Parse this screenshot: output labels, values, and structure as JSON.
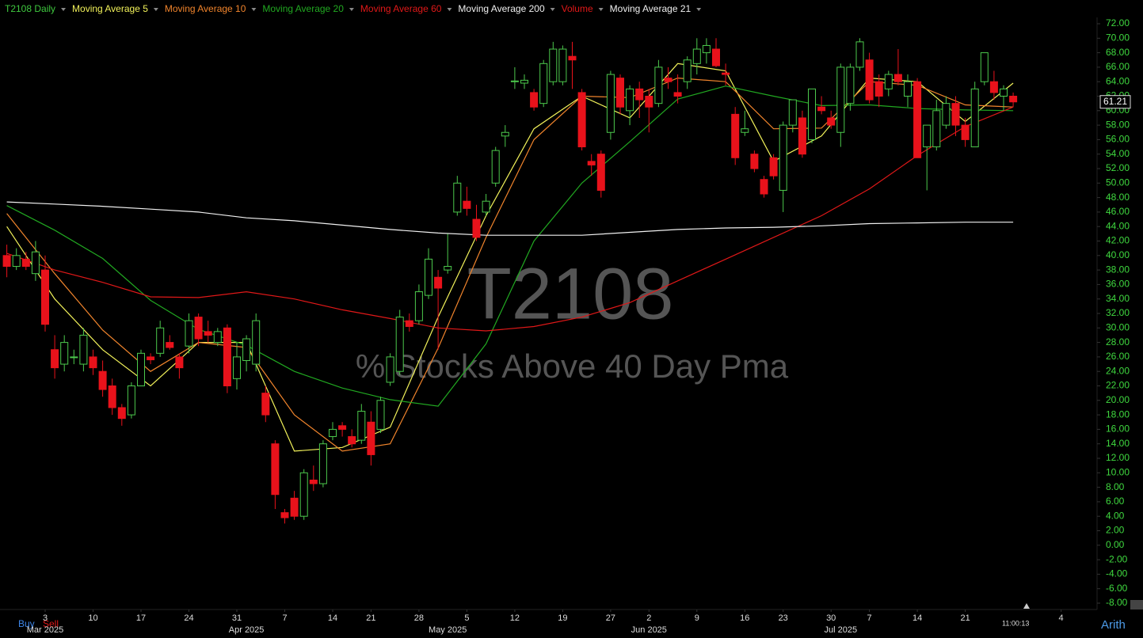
{
  "chart_data": {
    "type": "candlestick",
    "title": "T2108",
    "subtitle": "% Stocks Above 40 Day Pma",
    "up_color": "#4cc94c",
    "down_color": "#e8121b",
    "candles": {
      "name": "T2108 Daily",
      "color": "#3fc93f",
      "x": [
        "2025-02-25",
        "2025-02-26",
        "2025-02-27",
        "2025-02-28",
        "2025-03-03",
        "2025-03-04",
        "2025-03-05",
        "2025-03-06",
        "2025-03-07",
        "2025-03-10",
        "2025-03-11",
        "2025-03-12",
        "2025-03-13",
        "2025-03-14",
        "2025-03-17",
        "2025-03-18",
        "2025-03-19",
        "2025-03-20",
        "2025-03-21",
        "2025-03-24",
        "2025-03-25",
        "2025-03-26",
        "2025-03-27",
        "2025-03-28",
        "2025-03-31",
        "2025-04-01",
        "2025-04-02",
        "2025-04-03",
        "2025-04-04",
        "2025-04-07",
        "2025-04-08",
        "2025-04-09",
        "2025-04-10",
        "2025-04-11",
        "2025-04-14",
        "2025-04-15",
        "2025-04-16",
        "2025-04-17",
        "2025-04-21",
        "2025-04-22",
        "2025-04-23",
        "2025-04-24",
        "2025-04-25",
        "2025-04-28",
        "2025-04-29",
        "2025-04-30",
        "2025-05-01",
        "2025-05-02",
        "2025-05-05",
        "2025-05-06",
        "2025-05-07",
        "2025-05-08",
        "2025-05-09",
        "2025-05-12",
        "2025-05-13",
        "2025-05-14",
        "2025-05-15",
        "2025-05-16",
        "2025-05-19",
        "2025-05-20",
        "2025-05-21",
        "2025-05-22",
        "2025-05-23",
        "2025-05-27",
        "2025-05-28",
        "2025-05-29",
        "2025-05-30",
        "2025-06-02",
        "2025-06-03",
        "2025-06-04",
        "2025-06-05",
        "2025-06-06",
        "2025-06-09",
        "2025-06-10",
        "2025-06-11",
        "2025-06-12",
        "2025-06-13",
        "2025-06-16",
        "2025-06-17",
        "2025-06-18",
        "2025-06-20",
        "2025-06-23",
        "2025-06-24",
        "2025-06-25",
        "2025-06-26",
        "2025-06-27",
        "2025-06-30",
        "2025-07-01",
        "2025-07-02",
        "2025-07-03",
        "2025-07-07",
        "2025-07-08",
        "2025-07-09",
        "2025-07-10",
        "2025-07-11",
        "2025-07-14",
        "2025-07-15",
        "2025-07-16",
        "2025-07-17",
        "2025-07-18",
        "2025-07-21",
        "2025-07-22",
        "2025-07-23",
        "2025-07-24",
        "2025-07-25",
        "2025-07-28"
      ],
      "open": [
        40,
        38.5,
        39.5,
        37.5,
        38,
        27,
        25,
        26,
        25,
        26,
        24,
        22,
        19,
        18,
        22,
        26,
        26.5,
        28,
        26,
        27.5,
        31.5,
        29.5,
        28,
        30,
        23,
        25.5,
        25,
        21,
        14,
        4.5,
        6.5,
        4,
        9,
        8.5,
        15,
        16.5,
        15,
        14.5,
        17,
        16,
        22.5,
        24,
        31,
        31,
        34.5,
        37,
        38,
        46,
        47.5,
        45,
        46,
        50,
        56.5,
        64,
        63.8,
        62.5,
        61,
        64,
        64,
        67.5,
        62.5,
        53,
        54,
        57,
        64.5,
        60,
        63,
        62,
        61,
        64.5,
        62.5,
        64,
        66.5,
        68,
        68.5,
        65.2,
        59.5,
        57,
        54,
        50.5,
        53.5,
        49,
        58,
        59,
        56,
        60.5,
        59,
        57,
        61,
        66,
        67,
        64,
        63,
        65,
        62,
        64,
        55,
        55,
        58,
        61,
        58,
        55,
        64,
        64,
        62,
        62
      ],
      "high": [
        41.5,
        41,
        40.5,
        42,
        40,
        29,
        29,
        27,
        30,
        27,
        25.5,
        23,
        19.5,
        22.5,
        27,
        26.5,
        31,
        29,
        26.5,
        32,
        32,
        31,
        30,
        30.5,
        28,
        29,
        32,
        22,
        14.5,
        5,
        7.5,
        10.5,
        11,
        14.5,
        17,
        17,
        16,
        19.5,
        18.5,
        20.5,
        26.5,
        32.5,
        32,
        36,
        41,
        38,
        43,
        51,
        49.5,
        47,
        48.5,
        55,
        58,
        66,
        65,
        63,
        67,
        69.5,
        69,
        69.5,
        63,
        54,
        54.5,
        65.5,
        65,
        63.5,
        64,
        63,
        67,
        66,
        65,
        67.5,
        70,
        70,
        70,
        66.5,
        60.5,
        60,
        54.5,
        51,
        54,
        58.5,
        61.5,
        60,
        63,
        62,
        60,
        66.5,
        66.5,
        70,
        68,
        65,
        65.5,
        68.5,
        65,
        64.5,
        58,
        61.5,
        62,
        62,
        59,
        64,
        68,
        65.5,
        63.5,
        62.5
      ],
      "low": [
        37,
        38,
        38,
        36.5,
        29.5,
        23,
        24,
        25,
        24,
        23.5,
        20.5,
        18,
        16.5,
        17.5,
        22,
        25,
        26,
        27,
        23,
        26.5,
        27.5,
        28,
        27.5,
        21,
        21.5,
        24,
        24,
        17,
        5,
        3,
        3.5,
        3.5,
        7.5,
        8,
        14.5,
        15,
        13.5,
        14,
        11,
        15.5,
        22,
        23.5,
        29.5,
        30.5,
        34,
        27,
        37.5,
        45.5,
        45.5,
        42,
        45.5,
        49.5,
        55,
        63,
        63,
        60,
        60.5,
        63.5,
        63.5,
        63,
        54.5,
        51,
        48,
        56,
        59.5,
        58,
        59,
        57,
        60.5,
        63,
        61,
        63,
        65,
        66.5,
        66,
        63.5,
        52.5,
        56.5,
        51.5,
        48,
        50.5,
        46,
        57,
        53.5,
        55.5,
        59.5,
        57.5,
        55,
        60,
        65.5,
        61,
        60.5,
        62,
        63.5,
        60.5,
        53.5,
        49,
        54.5,
        57.5,
        56.5,
        55,
        55,
        63.5,
        61.5,
        60,
        60.5
      ],
      "close": [
        38.5,
        40,
        38.5,
        40.5,
        30.5,
        24.5,
        28,
        26,
        29,
        24.5,
        21.5,
        19,
        17.5,
        22,
        26.5,
        25.6,
        30,
        27.3,
        24.5,
        31,
        28.5,
        29,
        29.5,
        22,
        26,
        28.5,
        31,
        18,
        7,
        3.8,
        4,
        10,
        8.5,
        14,
        16,
        16,
        14,
        18.5,
        12.5,
        20,
        26,
        31.5,
        30.2,
        35,
        39.5,
        35.5,
        38.5,
        50,
        46.5,
        42.5,
        47.5,
        54.5,
        57,
        64.1,
        64.2,
        60.5,
        66.5,
        68.5,
        68.5,
        67,
        55,
        52.5,
        49,
        65,
        60.5,
        63,
        61.5,
        60.5,
        66,
        64,
        62,
        67,
        68.5,
        69,
        66.2,
        65,
        53.5,
        57.5,
        52,
        48.5,
        51,
        58,
        61.5,
        54,
        63,
        60,
        58,
        66,
        66,
        69.5,
        61.5,
        62,
        65,
        64,
        64,
        53.5,
        58,
        60,
        61,
        58,
        56,
        63,
        68,
        62.5,
        63,
        61.21
      ]
    },
    "series": [
      {
        "name": "Moving Average 5",
        "color": "#f2f25a",
        "x": [
          "2025-02-25",
          "2025-03-04",
          "2025-03-11",
          "2025-03-18",
          "2025-03-25",
          "2025-04-01",
          "2025-04-08",
          "2025-04-15",
          "2025-04-23",
          "2025-04-30",
          "2025-05-07",
          "2025-05-14",
          "2025-05-21",
          "2025-05-29",
          "2025-06-05",
          "2025-06-12",
          "2025-06-20",
          "2025-06-27",
          "2025-07-07",
          "2025-07-14",
          "2025-07-21",
          "2025-07-28"
        ],
        "values": [
          44,
          34,
          27,
          22,
          28,
          28,
          13,
          13.5,
          16.3,
          31.5,
          45.5,
          57.5,
          62,
          59,
          66.5,
          65.5,
          53,
          56.5,
          64.5,
          64,
          58.5,
          63.8
        ]
      },
      {
        "name": "Moving Average 10",
        "color": "#f0842c",
        "x": [
          "2025-02-25",
          "2025-03-04",
          "2025-03-11",
          "2025-03-18",
          "2025-03-25",
          "2025-04-01",
          "2025-04-08",
          "2025-04-15",
          "2025-04-23",
          "2025-04-30",
          "2025-05-07",
          "2025-05-14",
          "2025-05-21",
          "2025-05-29",
          "2025-06-05",
          "2025-06-12",
          "2025-06-20",
          "2025-06-27",
          "2025-07-07",
          "2025-07-14",
          "2025-07-21",
          "2025-07-28"
        ],
        "values": [
          45.8,
          37.5,
          29.7,
          24,
          28,
          27.3,
          18,
          13,
          14,
          27.2,
          42.5,
          56,
          62,
          61.8,
          64.5,
          64,
          57.5,
          57.6,
          64,
          63.5,
          60.8,
          60.5
        ]
      },
      {
        "name": "Moving Average 20",
        "color": "#21a821",
        "x": [
          "2025-02-25",
          "2025-03-04",
          "2025-03-11",
          "2025-03-18",
          "2025-03-25",
          "2025-04-01",
          "2025-04-08",
          "2025-04-15",
          "2025-04-23",
          "2025-04-30",
          "2025-05-07",
          "2025-05-14",
          "2025-05-21",
          "2025-05-29",
          "2025-06-05",
          "2025-06-12",
          "2025-06-20",
          "2025-06-27",
          "2025-07-07",
          "2025-07-14",
          "2025-07-21",
          "2025-07-28"
        ],
        "values": [
          46.9,
          43.5,
          39.6,
          33.8,
          29.8,
          27.6,
          24,
          21.7,
          20.1,
          19.2,
          27.8,
          42,
          50,
          55.7,
          61.6,
          63.4,
          62,
          60.7,
          60.8,
          60.3,
          60.1,
          60
        ]
      },
      {
        "name": "Moving Average 60",
        "color": "#e01818",
        "x": [
          "2025-02-25",
          "2025-03-04",
          "2025-03-11",
          "2025-03-18",
          "2025-03-25",
          "2025-04-01",
          "2025-04-08",
          "2025-04-15",
          "2025-04-23",
          "2025-04-30",
          "2025-05-07",
          "2025-05-14",
          "2025-05-21",
          "2025-05-29",
          "2025-06-05",
          "2025-06-12",
          "2025-06-20",
          "2025-06-27",
          "2025-07-07",
          "2025-07-14",
          "2025-07-21",
          "2025-07-28"
        ],
        "values": [
          40.3,
          38,
          36.3,
          34.3,
          34.2,
          35,
          34,
          32.5,
          31.3,
          30,
          29.6,
          30.2,
          31.5,
          33.5,
          36.5,
          39.5,
          42.5,
          45.5,
          49.2,
          53.8,
          57.8,
          60.5
        ]
      },
      {
        "name": "Moving Average 200",
        "color": "#f0f0f0",
        "x": [
          "2025-02-25",
          "2025-03-04",
          "2025-03-11",
          "2025-03-18",
          "2025-03-25",
          "2025-04-01",
          "2025-04-08",
          "2025-04-15",
          "2025-04-23",
          "2025-04-30",
          "2025-05-07",
          "2025-05-14",
          "2025-05-21",
          "2025-05-29",
          "2025-06-05",
          "2025-06-12",
          "2025-06-20",
          "2025-06-27",
          "2025-07-07",
          "2025-07-14",
          "2025-07-21",
          "2025-07-28"
        ],
        "values": [
          47.4,
          47.1,
          46.8,
          46.4,
          46,
          45.2,
          44.8,
          44.2,
          43.6,
          43.1,
          42.8,
          42.8,
          42.8,
          43.2,
          43.6,
          43.8,
          43.9,
          44.1,
          44.4,
          44.5,
          44.6,
          44.6
        ]
      }
    ],
    "extra_legend": [
      {
        "name": "Volume",
        "color": "#e01818"
      },
      {
        "name": "Moving Average 21",
        "color": "#f0f0f0"
      }
    ],
    "ylim": [
      -8,
      72
    ],
    "yticks": [
      {
        "value": 72,
        "label": "72.00"
      },
      {
        "value": 70,
        "label": "70.00"
      },
      {
        "value": 68,
        "label": "68.00"
      },
      {
        "value": 66,
        "label": "66.00"
      },
      {
        "value": 64,
        "label": "64.00"
      },
      {
        "value": 62,
        "label": "62.00"
      },
      {
        "value": 60,
        "label": "60.00"
      },
      {
        "value": 58,
        "label": "58.00"
      },
      {
        "value": 56,
        "label": "56.00"
      },
      {
        "value": 54,
        "label": "54.00"
      },
      {
        "value": 52,
        "label": "52.00"
      },
      {
        "value": 50,
        "label": "50.00"
      },
      {
        "value": 48,
        "label": "48.00"
      },
      {
        "value": 46,
        "label": "46.00"
      },
      {
        "value": 44,
        "label": "44.00"
      },
      {
        "value": 42,
        "label": "42.00"
      },
      {
        "value": 40,
        "label": "40.00"
      },
      {
        "value": 38,
        "label": "38.00"
      },
      {
        "value": 36,
        "label": "36.00"
      },
      {
        "value": 34,
        "label": "34.00"
      },
      {
        "value": 32,
        "label": "32.00"
      },
      {
        "value": 30,
        "label": "30.00"
      },
      {
        "value": 28,
        "label": "28.00"
      },
      {
        "value": 26,
        "label": "26.00"
      },
      {
        "value": 24,
        "label": "24.00"
      },
      {
        "value": 22,
        "label": "22.00"
      },
      {
        "value": 20,
        "label": "20.00"
      },
      {
        "value": 18,
        "label": "18.00"
      },
      {
        "value": 16,
        "label": "16.00"
      },
      {
        "value": 14,
        "label": "14.00"
      },
      {
        "value": 12,
        "label": "12.00"
      },
      {
        "value": 10,
        "label": "10.00"
      },
      {
        "value": 8,
        "label": "8.00"
      },
      {
        "value": 6,
        "label": "6.00"
      },
      {
        "value": 4,
        "label": "4.00"
      },
      {
        "value": 2,
        "label": "2.00"
      },
      {
        "value": 0,
        "label": "0.00"
      },
      {
        "value": -2,
        "label": "-2.00"
      },
      {
        "value": -4,
        "label": "-4.00"
      },
      {
        "value": -6,
        "label": "-6.00"
      },
      {
        "value": -8,
        "label": "-8.00"
      }
    ],
    "ytick_color": "#3fd83f",
    "xticks": [
      {
        "value": "2025-03-03",
        "label": "3"
      },
      {
        "value": "2025-03-10",
        "label": "10"
      },
      {
        "value": "2025-03-17",
        "label": "17"
      },
      {
        "value": "2025-03-24",
        "label": "24"
      },
      {
        "value": "2025-03-31",
        "label": "31"
      },
      {
        "value": "2025-04-07",
        "label": "7"
      },
      {
        "value": "2025-04-14",
        "label": "14"
      },
      {
        "value": "2025-04-21",
        "label": "21"
      },
      {
        "value": "2025-04-28",
        "label": "28"
      },
      {
        "value": "2025-05-05",
        "label": "5"
      },
      {
        "value": "2025-05-12",
        "label": "12"
      },
      {
        "value": "2025-05-19",
        "label": "19"
      },
      {
        "value": "2025-05-27",
        "label": "27"
      },
      {
        "value": "2025-06-02",
        "label": "2"
      },
      {
        "value": "2025-06-09",
        "label": "9"
      },
      {
        "value": "2025-06-16",
        "label": "16"
      },
      {
        "value": "2025-06-23",
        "label": "23"
      },
      {
        "value": "2025-06-30",
        "label": "30"
      },
      {
        "value": "2025-07-07",
        "label": "7"
      },
      {
        "value": "2025-07-14",
        "label": "14"
      },
      {
        "value": "2025-07-21",
        "label": "21"
      },
      {
        "value": "2025-08-04",
        "label": "4"
      }
    ],
    "month_ticks": [
      {
        "value": "2025-03-03",
        "label": "Mar 2025"
      },
      {
        "value": "2025-04-01",
        "label": "Apr 2025"
      },
      {
        "value": "2025-05-01",
        "label": "May 2025"
      },
      {
        "value": "2025-06-02",
        "label": "Jun 2025"
      },
      {
        "value": "2025-07-01",
        "label": "Jul 2025"
      }
    ],
    "last_price": 61.21,
    "buy_label": "Buy",
    "sell_label": "Sell",
    "time": "11:00:13",
    "scale_mode": "Arith"
  }
}
